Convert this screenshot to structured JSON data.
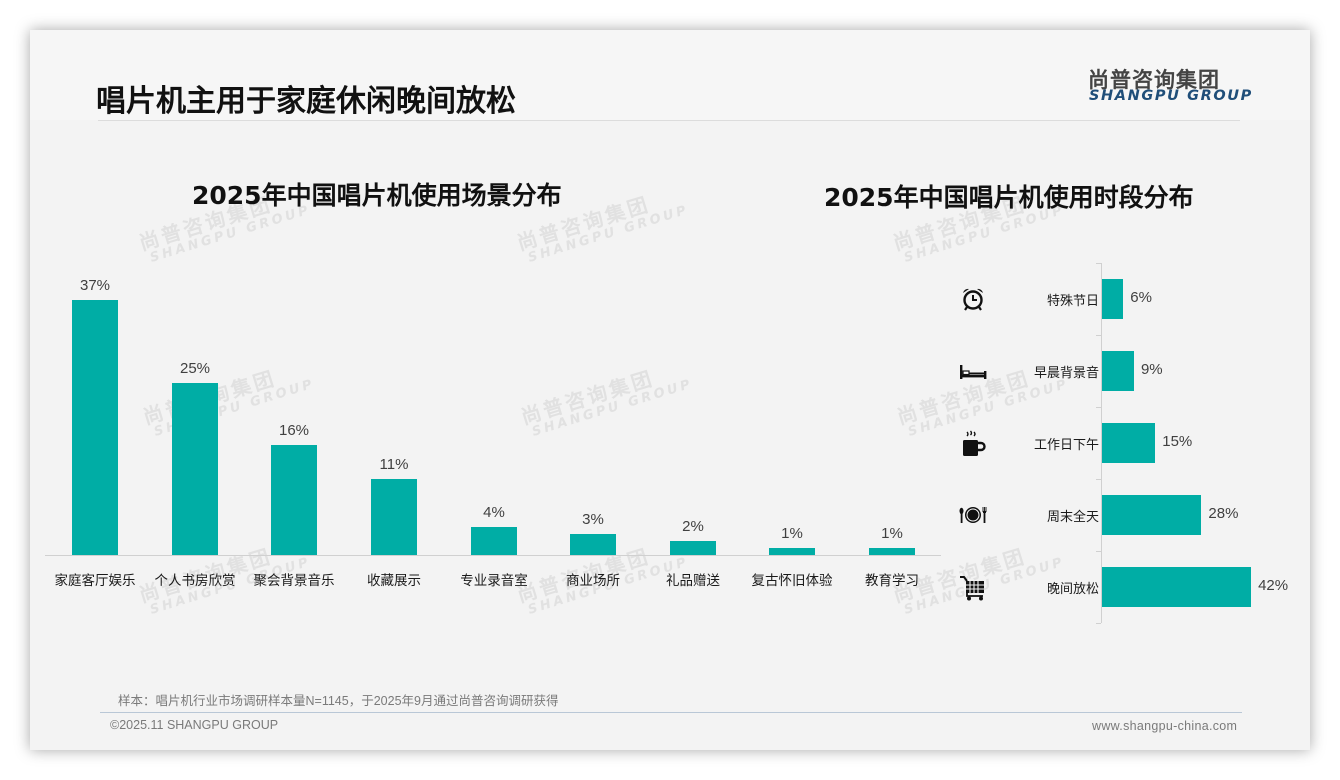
{
  "header": {
    "title": "唱片机主用于家庭休闲晚间放松",
    "logo_cn": "尚普咨询集团",
    "logo_en": "SHANGPU GROUP"
  },
  "watermark": {
    "cn": "尚普咨询集团",
    "en": "SHANGPU GROUP"
  },
  "colors": {
    "bar": "#00ada5",
    "logo_en": "#1f4e79",
    "background": "#f3f3f3"
  },
  "left_chart": {
    "title": "2025年中国唱片机使用场景分布"
  },
  "right_chart": {
    "title": "2025年中国唱片机使用时段分布",
    "icons": [
      "alarm-clock-icon",
      "bed-icon",
      "coffee-mug-icon",
      "plate-cutlery-icon",
      "shopping-cart-icon"
    ]
  },
  "footer": {
    "note": "样本：唱片机行业市场调研样本量N=1145，于2025年9月通过尚普咨询调研获得",
    "copyright": "©2025.11 SHANGPU GROUP",
    "website": "www.shangpu-china.com"
  },
  "chart_data": [
    {
      "type": "bar",
      "title": "2025年中国唱片机使用场景分布",
      "categories": [
        "家庭客厅娱乐",
        "个人书房欣赏",
        "聚会背景音乐",
        "收藏展示",
        "专业录音室",
        "商业场所",
        "礼品赠送",
        "复古怀旧体验",
        "教育学习"
      ],
      "values": [
        37,
        25,
        16,
        11,
        4,
        3,
        2,
        1,
        1
      ],
      "labels": [
        "37%",
        "25%",
        "16%",
        "11%",
        "4%",
        "3%",
        "2%",
        "1%",
        "1%"
      ],
      "xlabel": "",
      "ylabel": "",
      "unit": "%",
      "grid": false,
      "legend": "none",
      "orientation": "vertical"
    },
    {
      "type": "bar",
      "title": "2025年中国唱片机使用时段分布",
      "categories": [
        "特殊节日",
        "早晨背景音",
        "工作日下午",
        "周末全天",
        "晚间放松"
      ],
      "values": [
        6,
        9,
        15,
        28,
        42
      ],
      "labels": [
        "6%",
        "9%",
        "15%",
        "28%",
        "42%"
      ],
      "xlabel": "",
      "ylabel": "",
      "unit": "%",
      "grid": false,
      "legend": "none",
      "orientation": "horizontal"
    }
  ]
}
